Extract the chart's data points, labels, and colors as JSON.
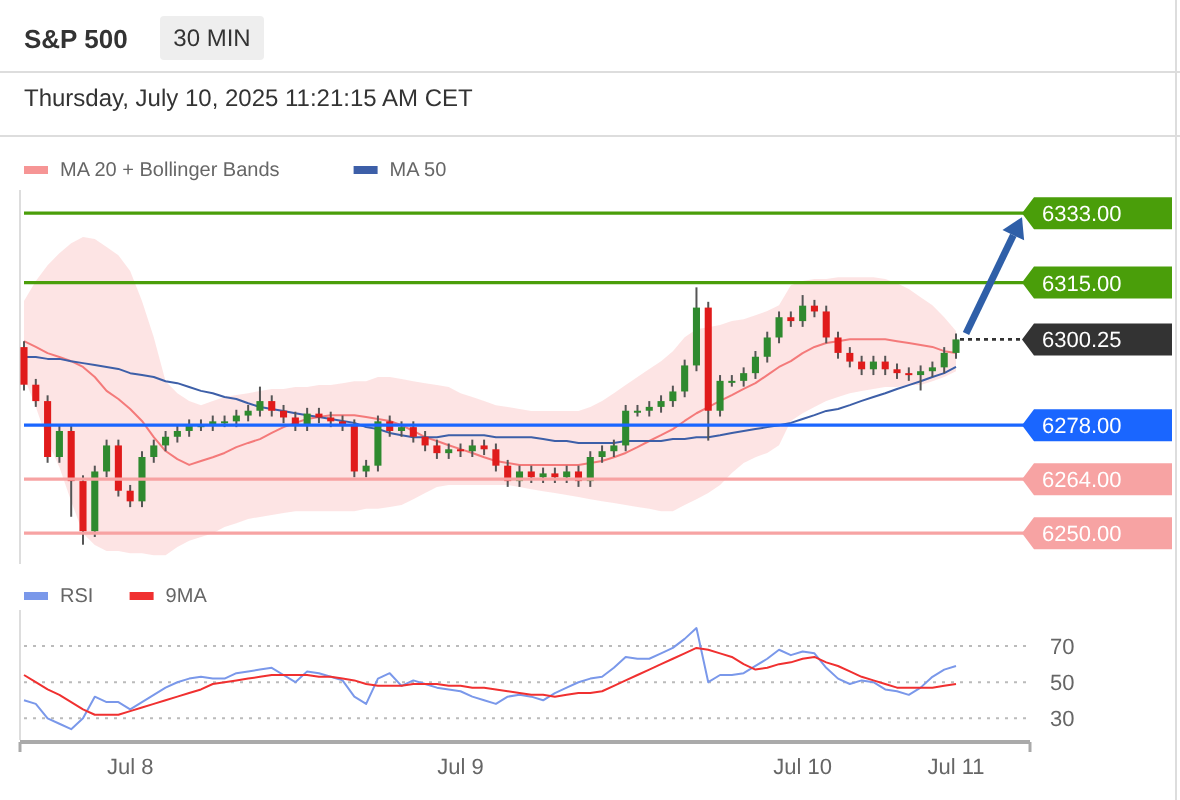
{
  "chart_data": [
    {
      "type": "candlestick",
      "title": "S&P 500",
      "subtitle": "Thursday, July 10, 2025 11:21:15 AM CET",
      "annotations": [
        "30 MIN"
      ],
      "legend": "top left",
      "tick_labels": false,
      "categories": [
        null,
        null,
        null,
        null,
        null,
        null,
        null,
        null,
        null,
        null,
        null,
        null,
        null,
        null,
        null,
        null,
        null,
        null,
        null,
        null,
        null,
        null,
        null,
        null,
        null,
        null,
        null,
        null,
        null,
        null,
        null,
        null,
        null,
        null,
        null,
        null,
        null,
        null,
        null,
        null,
        null,
        null,
        null,
        null,
        null,
        null,
        null,
        null,
        null,
        null,
        null,
        null,
        null,
        null,
        null,
        null,
        null,
        null,
        null,
        null,
        null,
        null,
        null,
        null,
        null,
        null,
        null,
        null,
        null,
        null,
        null,
        null,
        null,
        null,
        null,
        null,
        null,
        null,
        null,
        null
      ],
      "ylim": [
        6242,
        6339
      ],
      "ohlc": [
        [
          6298.25,
          6299.75,
          6287,
          6288.5
        ],
        [
          6288.5,
          6290,
          6282.75,
          6284.25
        ],
        [
          6284.25,
          6285.75,
          6268.25,
          6269.75
        ],
        [
          6269.75,
          6278,
          6268.25,
          6276.5
        ],
        [
          6276.5,
          6278,
          6254.25,
          6263.5
        ],
        [
          6263.5,
          6265,
          6247,
          6250.5
        ],
        [
          6250.5,
          6267.5,
          6249,
          6266
        ],
        [
          6266,
          6274.25,
          6264.5,
          6272.75
        ],
        [
          6272.75,
          6274.25,
          6259.5,
          6261
        ],
        [
          6261,
          6262.5,
          6256.75,
          6258.25
        ],
        [
          6258.25,
          6271.25,
          6256.75,
          6269.75
        ],
        [
          6269.75,
          6274.25,
          6268.25,
          6272.75
        ],
        [
          6272.75,
          6276.5,
          6271.25,
          6275
        ],
        [
          6275,
          6278,
          6273.5,
          6276.5
        ],
        [
          6276.5,
          6279.5,
          6275,
          6278
        ],
        [
          6278,
          6279.5,
          6276.5,
          6278
        ],
        [
          6278,
          6280.5,
          6276.5,
          6279
        ],
        [
          6279,
          6280.5,
          6277.5,
          6279
        ],
        [
          6279,
          6282,
          6277.5,
          6280.5
        ],
        [
          6280.5,
          6283.25,
          6279,
          6281.75
        ],
        [
          6281.75,
          6288,
          6280.25,
          6284.25
        ],
        [
          6284.25,
          6285.75,
          6280.25,
          6281.75
        ],
        [
          6281.75,
          6283.25,
          6278.5,
          6280
        ],
        [
          6280,
          6281.5,
          6276.5,
          6278
        ],
        [
          6278,
          6282.5,
          6276.5,
          6281
        ],
        [
          6281,
          6282.5,
          6278.5,
          6280
        ],
        [
          6280,
          6281.5,
          6277.5,
          6279
        ],
        [
          6279,
          6280.5,
          6276.5,
          6278
        ],
        [
          6278,
          6279.5,
          6264.5,
          6266
        ],
        [
          6266,
          6269,
          6264.5,
          6267.5
        ],
        [
          6267.5,
          6280.5,
          6266,
          6279
        ],
        [
          6279,
          6280.5,
          6275,
          6276.5
        ],
        [
          6276.5,
          6279,
          6275,
          6277.5
        ],
        [
          6277.5,
          6279,
          6273.5,
          6275
        ],
        [
          6275,
          6276.5,
          6271.25,
          6272.75
        ],
        [
          6272.75,
          6274.25,
          6269.25,
          6270.75
        ],
        [
          6270.75,
          6273.25,
          6269.25,
          6271.75
        ],
        [
          6271.75,
          6273.25,
          6269.75,
          6271.25
        ],
        [
          6271.25,
          6274.25,
          6269.75,
          6272.75
        ],
        [
          6272.75,
          6274.25,
          6270.25,
          6271.75
        ],
        [
          6271.75,
          6273.25,
          6266,
          6267.5
        ],
        [
          6267.5,
          6269,
          6262,
          6263.5
        ],
        [
          6263.5,
          6267.5,
          6262,
          6266
        ],
        [
          6266,
          6267.5,
          6263,
          6264.5
        ],
        [
          6264.5,
          6267,
          6263,
          6265.5
        ],
        [
          6265.5,
          6267,
          6263,
          6264.5
        ],
        [
          6264.5,
          6267.5,
          6263,
          6266
        ],
        [
          6266,
          6267.5,
          6262,
          6263.5
        ],
        [
          6263.5,
          6271.25,
          6262,
          6269.75
        ],
        [
          6269.75,
          6272.75,
          6268.25,
          6271.25
        ],
        [
          6271.25,
          6274.25,
          6269.75,
          6272.75
        ],
        [
          6272.75,
          6283.25,
          6271.25,
          6281.75
        ],
        [
          6281.75,
          6283.25,
          6280.25,
          6281.75
        ],
        [
          6281.75,
          6284.25,
          6280.25,
          6282.75
        ],
        [
          6282.75,
          6285.75,
          6281.25,
          6284.25
        ],
        [
          6284.25,
          6288.25,
          6282.75,
          6286.75
        ],
        [
          6286.75,
          6295,
          6285.25,
          6293.5
        ],
        [
          6293.5,
          6313.75,
          6292,
          6308.5
        ],
        [
          6308.5,
          6310,
          6274,
          6281.75
        ],
        [
          6281.75,
          6291,
          6280.25,
          6289.5
        ],
        [
          6289.5,
          6291,
          6288,
          6289.5
        ],
        [
          6289.5,
          6293,
          6288,
          6291.5
        ],
        [
          6291.5,
          6297.25,
          6290,
          6295.75
        ],
        [
          6295.75,
          6302.25,
          6294.25,
          6300.75
        ],
        [
          6300.75,
          6307.5,
          6299.25,
          6306
        ],
        [
          6306,
          6307.5,
          6303.5,
          6305
        ],
        [
          6305,
          6311.75,
          6303.5,
          6309
        ],
        [
          6309,
          6310.5,
          6306,
          6307.5
        ],
        [
          6307.5,
          6309,
          6299.25,
          6300.75
        ],
        [
          6300.75,
          6302.25,
          6295.25,
          6296.75
        ],
        [
          6296.75,
          6298.25,
          6293,
          6294.5
        ],
        [
          6294.5,
          6296,
          6291,
          6292.5
        ],
        [
          6292.5,
          6296,
          6291,
          6294.5
        ],
        [
          6294.5,
          6296,
          6291,
          6292.5
        ],
        [
          6292.5,
          6294,
          6290,
          6291.5
        ],
        [
          6291.5,
          6293,
          6289.5,
          6291
        ],
        [
          6291,
          6293.5,
          6287,
          6292
        ],
        [
          6292,
          6294.5,
          6290.5,
          6293
        ],
        [
          6293,
          6298.25,
          6291.5,
          6296.75
        ],
        [
          6296.75,
          6301.75,
          6295.25,
          6300.25
        ]
      ],
      "series": [
        {
          "name": "MA 20 + Bollinger Bands",
          "type": "line",
          "color": "#f47a7a",
          "values": [
            6299.8,
            6298.3,
            6296.7,
            6295.7,
            6294.6,
            6293.1,
            6290.5,
            6286.9,
            6284.8,
            6282.2,
            6279.1,
            6274.9,
            6271.3,
            6269.2,
            6267.7,
            6268.7,
            6269.7,
            6270.8,
            6272.3,
            6273.4,
            6274.4,
            6276.0,
            6277.5,
            6278.6,
            6279.6,
            6280.1,
            6280.6,
            6280.6,
            6280.6,
            6280.1,
            6279.6,
            6279.1,
            6278.0,
            6276.5,
            6274.9,
            6273.9,
            6272.8,
            6271.8,
            6270.8,
            6269.7,
            6268.7,
            6268.2,
            6267.7,
            6267.7,
            6267.7,
            6267.7,
            6267.7,
            6267.7,
            6268.2,
            6268.7,
            6269.7,
            6270.8,
            6272.3,
            6273.9,
            6275.4,
            6277.0,
            6279.1,
            6281.1,
            6282.7,
            6284.3,
            6285.8,
            6287.4,
            6288.9,
            6291.0,
            6293.1,
            6294.6,
            6296.7,
            6298.3,
            6299.3,
            6299.8,
            6300.3,
            6300.3,
            6300.3,
            6300.3,
            6299.8,
            6299.3,
            6298.8,
            6298.3,
            6297.2,
            6296.7
          ],
          "upper": [
            6310.2,
            6315.4,
            6319.5,
            6322.6,
            6325.2,
            6326.8,
            6326.3,
            6324.2,
            6322.1,
            6318.0,
            6310.2,
            6300.8,
            6289.4,
            6286.3,
            6284.3,
            6283.2,
            6284.3,
            6285.3,
            6285.8,
            6286.3,
            6286.9,
            6287.4,
            6287.4,
            6287.9,
            6287.9,
            6288.4,
            6288.4,
            6288.9,
            6289.4,
            6289.4,
            6290.5,
            6290.5,
            6290.0,
            6289.4,
            6288.9,
            6288.4,
            6287.9,
            6286.3,
            6285.3,
            6284.3,
            6283.2,
            6282.7,
            6282.2,
            6281.7,
            6281.7,
            6281.7,
            6281.7,
            6281.7,
            6282.7,
            6284.3,
            6286.3,
            6288.4,
            6290.5,
            6292.6,
            6294.6,
            6297.2,
            6300.8,
            6302.9,
            6303.4,
            6304.0,
            6305.0,
            6305.5,
            6306.5,
            6307.6,
            6309.1,
            6314.3,
            6315.4,
            6315.9,
            6315.9,
            6316.4,
            6316.4,
            6316.4,
            6316.4,
            6315.9,
            6314.8,
            6313.3,
            6311.2,
            6309.1,
            6306.0,
            6302.4
          ],
          "lower": [
            6290.5,
            6282.7,
            6273.9,
            6267.1,
            6258.3,
            6250.0,
            6246.9,
            6245.4,
            6245.4,
            6244.8,
            6244.8,
            6244.3,
            6244.3,
            6246.4,
            6248.0,
            6249.0,
            6250.0,
            6251.6,
            6252.6,
            6253.7,
            6254.2,
            6254.7,
            6255.2,
            6255.7,
            6255.7,
            6255.7,
            6255.7,
            6255.7,
            6255.7,
            6256.3,
            6256.3,
            6256.8,
            6257.3,
            6258.8,
            6260.4,
            6262.0,
            6262.5,
            6262.5,
            6262.5,
            6262.5,
            6262.5,
            6262.5,
            6262.0,
            6261.4,
            6260.9,
            6260.4,
            6259.9,
            6259.4,
            6258.8,
            6258.3,
            6257.8,
            6257.3,
            6256.8,
            6256.3,
            6255.7,
            6255.7,
            6257.3,
            6258.8,
            6260.4,
            6262.5,
            6265.6,
            6268.2,
            6269.7,
            6270.8,
            6272.8,
            6279.1,
            6281.1,
            6282.7,
            6284.3,
            6285.3,
            6286.3,
            6286.9,
            6287.4,
            6287.9,
            6287.9,
            6288.4,
            6288.4,
            6289.4,
            6290.5,
            6292.0
          ]
        },
        {
          "name": "MA 50",
          "type": "line",
          "color": "#3d5fa8",
          "values": [
            6295.7,
            6295.7,
            6295.2,
            6295.2,
            6294.6,
            6294.1,
            6293.6,
            6293.1,
            6292.6,
            6291.5,
            6291.0,
            6290.5,
            6289.4,
            6288.9,
            6287.9,
            6286.9,
            6286.3,
            6285.3,
            6284.8,
            6283.7,
            6282.7,
            6282.2,
            6281.7,
            6281.1,
            6280.6,
            6280.1,
            6279.6,
            6279.1,
            6278.6,
            6277.5,
            6277.0,
            6276.0,
            6275.4,
            6274.9,
            6274.9,
            6274.9,
            6275.4,
            6275.4,
            6275.4,
            6275.4,
            6274.9,
            6274.9,
            6274.9,
            6274.9,
            6274.4,
            6273.9,
            6273.9,
            6273.4,
            6273.4,
            6273.4,
            6273.4,
            6273.9,
            6273.9,
            6273.9,
            6273.9,
            6274.4,
            6274.4,
            6274.9,
            6274.9,
            6275.4,
            6276.0,
            6276.5,
            6277.0,
            6277.5,
            6278.0,
            6278.6,
            6279.6,
            6280.6,
            6281.7,
            6282.2,
            6283.2,
            6284.3,
            6285.3,
            6286.3,
            6287.4,
            6288.4,
            6289.4,
            6290.5,
            6291.5,
            6293.1
          ]
        }
      ],
      "ref_lines": [
        {
          "axis": "y",
          "value": 6333,
          "label": "6333.00",
          "color": "#4a9e0a"
        },
        {
          "axis": "y",
          "value": 6315,
          "label": "6315.00",
          "color": "#4a9e0a"
        },
        {
          "axis": "y",
          "value": 6300.25,
          "label": "6300.25",
          "color": "#333333",
          "line_style": "dotted"
        },
        {
          "axis": "y",
          "value": 6278,
          "label": "6278.00",
          "color": "#1a66ff"
        },
        {
          "axis": "y",
          "value": 6264,
          "label": "6264.00",
          "color": "#f7a3a3"
        },
        {
          "axis": "y",
          "value": 6250,
          "label": "6250.00",
          "color": "#f7a3a3"
        }
      ]
    },
    {
      "type": "line",
      "legend": "top left",
      "grid": "y",
      "categories": [
        null,
        null,
        null,
        null,
        null,
        null,
        null,
        null,
        null,
        "Jul 8",
        null,
        null,
        null,
        null,
        null,
        null,
        null,
        null,
        null,
        null,
        null,
        null,
        null,
        null,
        null,
        null,
        null,
        null,
        null,
        null,
        null,
        null,
        null,
        null,
        null,
        null,
        null,
        "Jul 9",
        null,
        null,
        null,
        null,
        null,
        null,
        null,
        null,
        null,
        null,
        null,
        null,
        null,
        null,
        null,
        null,
        null,
        null,
        null,
        null,
        null,
        null,
        null,
        null,
        null,
        null,
        null,
        null,
        "Jul 10",
        null,
        null,
        null,
        null,
        null,
        null,
        null,
        null,
        null,
        null,
        null,
        null,
        "Jul 11"
      ],
      "ylim": [
        18,
        90
      ],
      "yticks": [
        30,
        50,
        70
      ],
      "series": [
        {
          "name": "RSI",
          "color": "#7a98ea",
          "values": [
            40,
            38,
            30,
            27,
            24,
            30,
            42,
            39,
            39,
            35,
            39,
            43,
            47,
            50,
            52,
            53,
            52,
            52,
            55,
            56,
            57,
            58,
            54,
            50,
            56,
            55,
            53,
            51,
            42,
            38,
            52,
            55,
            48,
            51,
            49,
            47,
            46,
            45,
            42,
            40,
            38,
            42,
            43,
            42,
            40,
            44,
            47,
            50,
            52,
            53,
            58,
            64,
            63,
            63,
            66,
            69,
            74,
            80,
            50,
            54,
            54,
            55,
            59,
            63,
            68,
            65,
            67,
            66,
            58,
            52,
            49,
            51,
            50,
            46,
            45,
            43,
            47,
            53,
            57,
            59
          ]
        },
        {
          "name": "9MA",
          "color": "#f03030",
          "values": [
            54,
            50,
            46,
            43,
            39,
            35,
            32,
            32,
            32,
            34,
            36,
            38,
            40,
            42,
            44,
            46,
            49,
            50,
            51,
            52,
            53,
            54,
            54,
            54,
            54,
            53,
            53,
            52,
            51,
            49,
            48,
            48,
            48,
            49,
            49,
            49,
            48,
            48,
            47,
            47,
            46,
            45,
            44,
            43,
            43,
            42,
            43,
            44,
            44,
            45,
            48,
            51,
            54,
            57,
            60,
            63,
            66,
            69,
            68,
            66,
            64,
            60,
            57,
            58,
            60,
            61,
            63,
            64,
            61,
            59,
            56,
            53,
            51,
            49,
            47,
            47,
            47,
            47,
            48,
            49
          ]
        }
      ]
    }
  ]
}
